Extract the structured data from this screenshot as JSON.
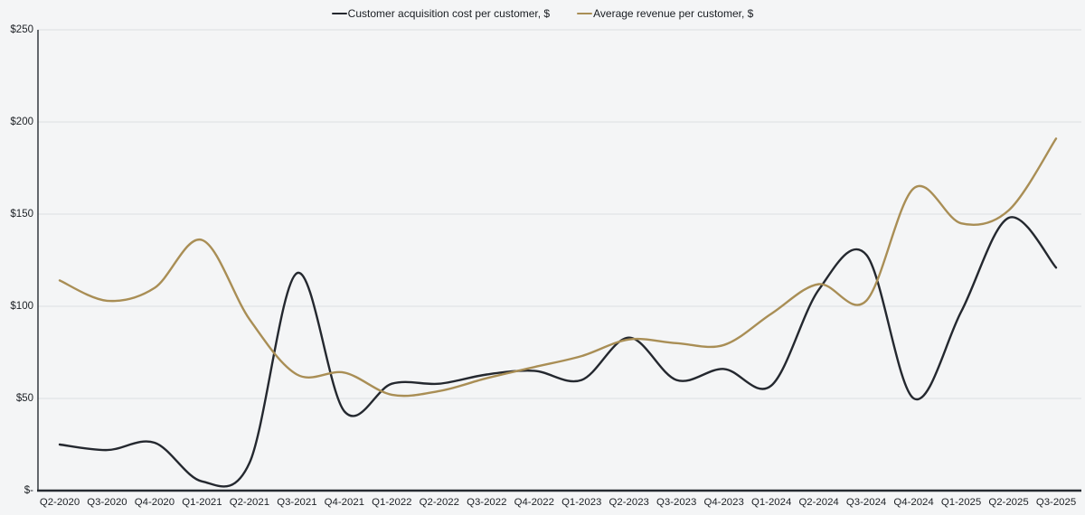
{
  "page": {
    "background": "#f4f5f6"
  },
  "chart_data": {
    "type": "line",
    "title": "",
    "xlabel": "",
    "ylabel": "",
    "grid": true,
    "legend_position": "top-center",
    "line_style": "smooth-spline",
    "categories": [
      "Q2-2020",
      "Q3-2020",
      "Q4-2020",
      "Q1-2021",
      "Q2-2021",
      "Q3-2021",
      "Q4-2021",
      "Q1-2022",
      "Q2-2022",
      "Q3-2022",
      "Q4-2022",
      "Q1-2023",
      "Q2-2023",
      "Q3-2023",
      "Q4-2023",
      "Q1-2024",
      "Q2-2024",
      "Q3-2024",
      "Q4-2024",
      "Q1-2025",
      "Q2-2025",
      "Q3-2025"
    ],
    "series": [
      {
        "name": "Customer acquisition cost per customer, $",
        "color": "#24282f",
        "values": [
          25,
          22,
          26,
          5,
          15,
          118,
          43,
          58,
          58,
          63,
          65,
          60,
          83,
          60,
          66,
          57,
          109,
          128,
          50,
          97,
          148,
          121
        ]
      },
      {
        "name": "Average revenue per customer, $",
        "color": "#a98e55",
        "values": [
          114,
          103,
          110,
          136,
          93,
          63,
          64,
          52,
          54,
          61,
          67,
          73,
          82,
          80,
          79,
          96,
          112,
          103,
          164,
          145,
          152,
          191
        ]
      }
    ],
    "y_axis": {
      "range": [
        0,
        250
      ],
      "ticks": [
        {
          "label": "$-",
          "value": 0
        },
        {
          "label": "$50",
          "value": 50
        },
        {
          "label": "$100",
          "value": 100
        },
        {
          "label": "$150",
          "value": 150
        },
        {
          "label": "$200",
          "value": 200
        },
        {
          "label": "$250",
          "value": 250
        }
      ]
    },
    "colors": {
      "grid": "#dcdee1",
      "axis": "#262b31",
      "tick_text": "#1c2025",
      "legend_text": "#191d22"
    }
  }
}
